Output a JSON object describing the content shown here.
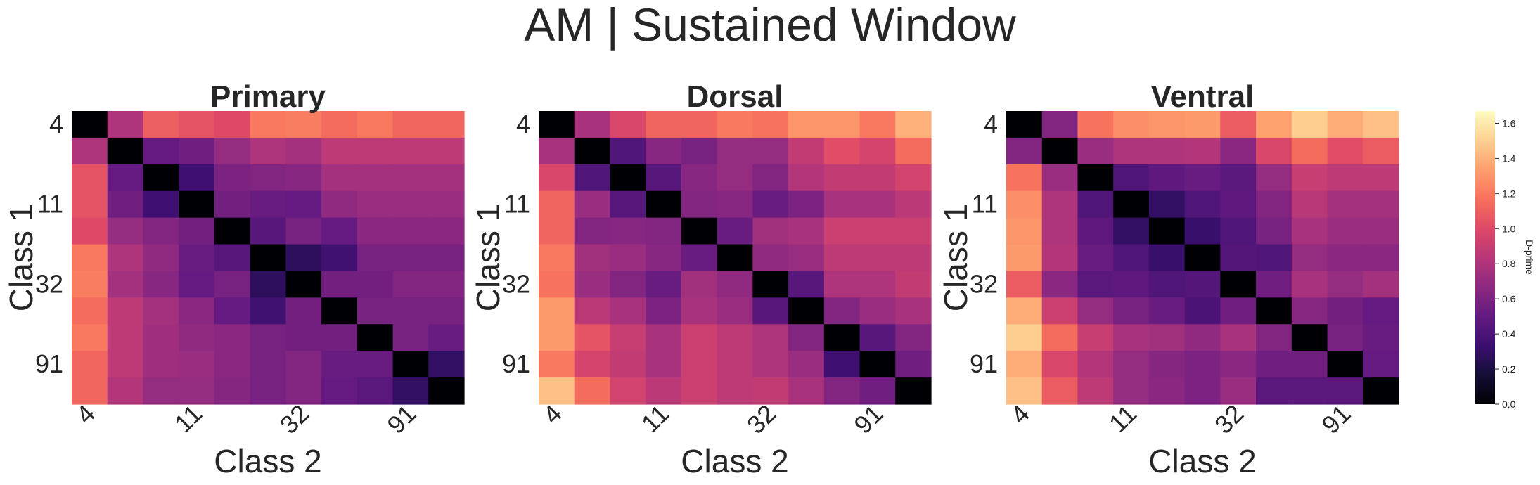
{
  "suptitle": "AM | Sustained Window",
  "colorbar": {
    "label": "D-prime",
    "ticks": [
      "0.0",
      "0.2",
      "0.4",
      "0.6",
      "0.8",
      "1.0",
      "1.2",
      "1.4",
      "1.6"
    ],
    "tick_values": [
      0.0,
      0.2,
      0.4,
      0.6,
      0.8,
      1.0,
      1.2,
      1.4,
      1.6
    ],
    "vmin": 0.0,
    "vmax": 1.67,
    "colormap": "magma"
  },
  "chart_data": [
    {
      "type": "heatmap",
      "title": "Primary",
      "xlabel": "Class 2",
      "ylabel": "Class 1",
      "xticks": [
        {
          "index": 0,
          "label": "4"
        },
        {
          "index": 3,
          "label": "11"
        },
        {
          "index": 6,
          "label": "32"
        },
        {
          "index": 9,
          "label": "91"
        }
      ],
      "yticks": [
        {
          "index": 0,
          "label": "4"
        },
        {
          "index": 3,
          "label": "11"
        },
        {
          "index": 6,
          "label": "32"
        },
        {
          "index": 9,
          "label": "91"
        }
      ],
      "values": [
        [
          0.0,
          0.8,
          1.1,
          1.05,
          1.0,
          1.2,
          1.22,
          1.15,
          1.2,
          1.13,
          1.13
        ],
        [
          0.8,
          0.0,
          0.5,
          0.55,
          0.7,
          0.8,
          0.76,
          0.86,
          0.86,
          0.86,
          0.86
        ],
        [
          1.05,
          0.5,
          0.0,
          0.35,
          0.6,
          0.62,
          0.65,
          0.76,
          0.76,
          0.76,
          0.76
        ],
        [
          1.05,
          0.55,
          0.35,
          0.0,
          0.56,
          0.52,
          0.5,
          0.68,
          0.72,
          0.72,
          0.72
        ],
        [
          1.0,
          0.7,
          0.62,
          0.56,
          0.0,
          0.45,
          0.58,
          0.5,
          0.66,
          0.66,
          0.66
        ],
        [
          1.2,
          0.8,
          0.68,
          0.52,
          0.45,
          0.0,
          0.28,
          0.36,
          0.58,
          0.58,
          0.58
        ],
        [
          1.22,
          0.76,
          0.65,
          0.5,
          0.58,
          0.28,
          0.0,
          0.56,
          0.56,
          0.62,
          0.62
        ],
        [
          1.15,
          0.86,
          0.76,
          0.66,
          0.5,
          0.36,
          0.56,
          0.0,
          0.58,
          0.58,
          0.58
        ],
        [
          1.2,
          0.86,
          0.74,
          0.68,
          0.66,
          0.58,
          0.56,
          0.56,
          0.0,
          0.58,
          0.52
        ],
        [
          1.13,
          0.86,
          0.74,
          0.72,
          0.66,
          0.58,
          0.62,
          0.52,
          0.52,
          0.0,
          0.3
        ],
        [
          1.13,
          0.82,
          0.7,
          0.7,
          0.64,
          0.58,
          0.62,
          0.5,
          0.46,
          0.3,
          0.0
        ]
      ]
    },
    {
      "type": "heatmap",
      "title": "Dorsal",
      "xlabel": "Class 2",
      "ylabel": "Class 1",
      "xticks": [
        {
          "index": 0,
          "label": "4"
        },
        {
          "index": 3,
          "label": "11"
        },
        {
          "index": 6,
          "label": "32"
        },
        {
          "index": 9,
          "label": "91"
        }
      ],
      "yticks": [
        {
          "index": 0,
          "label": "4"
        },
        {
          "index": 3,
          "label": "11"
        },
        {
          "index": 6,
          "label": "32"
        },
        {
          "index": 9,
          "label": "91"
        }
      ],
      "values": [
        [
          0.0,
          0.78,
          0.98,
          1.12,
          1.12,
          1.2,
          1.18,
          1.3,
          1.3,
          1.2,
          1.4
        ],
        [
          0.78,
          0.0,
          0.42,
          0.65,
          0.58,
          0.7,
          0.7,
          0.88,
          1.02,
          0.96,
          1.15
        ],
        [
          0.98,
          0.42,
          0.0,
          0.45,
          0.65,
          0.7,
          0.62,
          0.82,
          0.88,
          0.88,
          0.95
        ],
        [
          1.12,
          0.72,
          0.45,
          0.0,
          0.62,
          0.65,
          0.52,
          0.6,
          0.78,
          0.78,
          0.85
        ],
        [
          1.12,
          0.62,
          0.65,
          0.62,
          0.0,
          0.52,
          0.75,
          0.78,
          0.92,
          0.92,
          0.92
        ],
        [
          1.2,
          0.75,
          0.72,
          0.65,
          0.52,
          0.0,
          0.68,
          0.72,
          0.86,
          0.86,
          0.86
        ],
        [
          1.18,
          0.72,
          0.62,
          0.52,
          0.75,
          0.68,
          0.0,
          0.45,
          0.8,
          0.8,
          0.88
        ],
        [
          1.32,
          0.85,
          0.78,
          0.6,
          0.78,
          0.72,
          0.45,
          0.0,
          0.62,
          0.72,
          0.78
        ],
        [
          1.32,
          1.05,
          0.9,
          0.78,
          0.92,
          0.86,
          0.8,
          0.62,
          0.0,
          0.45,
          0.62
        ],
        [
          1.2,
          0.96,
          0.88,
          0.78,
          0.92,
          0.86,
          0.8,
          0.72,
          0.35,
          0.0,
          0.55
        ],
        [
          1.45,
          1.15,
          0.95,
          0.85,
          0.92,
          0.86,
          0.88,
          0.78,
          0.62,
          0.55,
          0.0
        ]
      ]
    },
    {
      "type": "heatmap",
      "title": "Ventral",
      "xlabel": "Class 2",
      "ylabel": "Class 1",
      "xticks": [
        {
          "index": 0,
          "label": "4"
        },
        {
          "index": 3,
          "label": "11"
        },
        {
          "index": 6,
          "label": "32"
        },
        {
          "index": 9,
          "label": "91"
        }
      ],
      "yticks": [
        {
          "index": 0,
          "label": "4"
        },
        {
          "index": 3,
          "label": "11"
        },
        {
          "index": 6,
          "label": "32"
        },
        {
          "index": 9,
          "label": "91"
        }
      ],
      "values": [
        [
          0.0,
          0.62,
          1.18,
          1.28,
          1.3,
          1.32,
          1.08,
          1.35,
          1.5,
          1.38,
          1.45
        ],
        [
          0.62,
          0.0,
          0.72,
          0.8,
          0.8,
          0.82,
          0.66,
          0.98,
          1.15,
          1.02,
          1.08
        ],
        [
          1.18,
          0.72,
          0.0,
          0.42,
          0.48,
          0.52,
          0.46,
          0.7,
          0.9,
          0.86,
          0.86
        ],
        [
          1.28,
          0.8,
          0.42,
          0.0,
          0.3,
          0.42,
          0.48,
          0.62,
          0.84,
          0.76,
          0.76
        ],
        [
          1.3,
          0.8,
          0.48,
          0.3,
          0.0,
          0.32,
          0.42,
          0.58,
          0.78,
          0.72,
          0.72
        ],
        [
          1.32,
          0.82,
          0.52,
          0.42,
          0.32,
          0.0,
          0.44,
          0.42,
          0.7,
          0.66,
          0.66
        ],
        [
          1.08,
          0.66,
          0.46,
          0.48,
          0.42,
          0.44,
          0.0,
          0.55,
          0.78,
          0.7,
          0.76
        ],
        [
          1.38,
          0.92,
          0.7,
          0.58,
          0.52,
          0.4,
          0.55,
          0.0,
          0.65,
          0.56,
          0.5
        ],
        [
          1.5,
          1.15,
          0.9,
          0.78,
          0.75,
          0.68,
          0.78,
          0.62,
          0.0,
          0.58,
          0.52
        ],
        [
          1.38,
          0.98,
          0.82,
          0.7,
          0.64,
          0.6,
          0.66,
          0.55,
          0.55,
          0.0,
          0.5
        ],
        [
          1.45,
          1.08,
          0.86,
          0.7,
          0.66,
          0.6,
          0.72,
          0.46,
          0.46,
          0.46,
          0.0
        ]
      ]
    }
  ]
}
